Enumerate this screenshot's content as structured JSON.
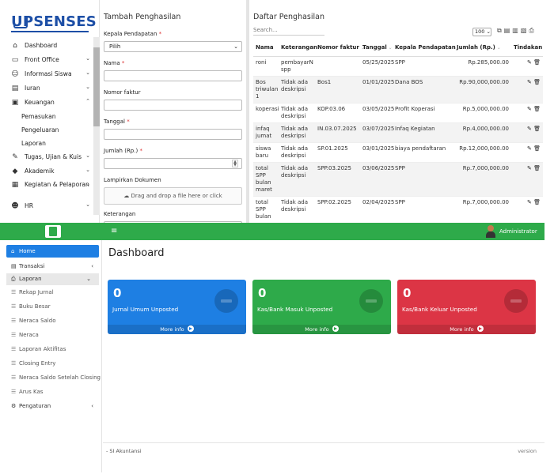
{
  "top_app": {
    "logo": {
      "text": "UPSENSES"
    },
    "sidebar": {
      "items": [
        {
          "label": "Dashboard",
          "icon": "home-icon",
          "glyph": "⌂",
          "chevron": false
        },
        {
          "label": "Front Office",
          "icon": "monitor-icon",
          "glyph": "▭",
          "chevron": true
        },
        {
          "label": "Informasi Siswa",
          "icon": "users-icon",
          "glyph": "☺",
          "chevron": true
        },
        {
          "label": "Iuran",
          "icon": "money-icon",
          "glyph": "▤",
          "chevron": true
        },
        {
          "label": "Keuangan",
          "icon": "finance-icon",
          "glyph": "▣",
          "chevron_up": true
        }
      ],
      "subitems": [
        "Pemasukan",
        "Pengeluaran",
        "Laporan"
      ],
      "items_after": [
        {
          "label": "Tugas, Ujian & Kuis",
          "icon": "exam-icon",
          "glyph": "✎",
          "chevron": true
        },
        {
          "label": "Akademik",
          "icon": "graduation-cap-icon",
          "glyph": "◆",
          "chevron": true
        },
        {
          "label": "Kegiatan & Pelaporan",
          "icon": "report-icon",
          "glyph": "▦",
          "chevron": true,
          "two_line": true
        },
        {
          "label": "HR",
          "icon": "people-icon",
          "glyph": "☻",
          "chevron": true
        }
      ]
    },
    "form": {
      "title": "Tambah Penghasilan",
      "kepala_label": "Kepala Pendapatan",
      "kepala_value": "Pilih",
      "nama_label": "Nama",
      "nomor_label": "Nomor faktur",
      "tanggal_label": "Tanggal",
      "jumlah_label": "Jumlah (Rp.)",
      "lampiran_label": "Lampirkan Dokumen",
      "dropzone_text": "Drag and drop a file here or click",
      "keterangan_label": "Keterangan",
      "required_mark": "*"
    },
    "table": {
      "title": "Daftar Penghasilan",
      "search_placeholder": "Search...",
      "page_size": "100",
      "headers": [
        "Nama",
        "Keterangan",
        "Nomor faktur",
        "Tanggal",
        "Kepala Pendapatan",
        "Jumlah (Rp.)",
        "Tindakan"
      ],
      "rows": [
        {
          "nama": "roni",
          "keterangan": "pembayarN spp",
          "nomor": "",
          "tanggal": "05/25/2025",
          "kepala": "SPP",
          "jumlah": "Rp.285,000.00"
        },
        {
          "nama": "Bos triwulan 1",
          "keterangan": "Tidak ada deskripsi",
          "nomor": "Bos1",
          "tanggal": "01/01/2025",
          "kepala": "Dana BOS",
          "jumlah": "Rp.90,000,000.00"
        },
        {
          "nama": "koperasi",
          "keterangan": "Tidak ada deskripsi",
          "nomor": "KOP.03.06",
          "tanggal": "03/05/2025",
          "kepala": "Profit Koperasi",
          "jumlah": "Rp.5,000,000.00"
        },
        {
          "nama": "infaq jumat",
          "keterangan": "Tidak ada deskripsi",
          "nomor": "IN.03.07.2025",
          "tanggal": "03/07/2025",
          "kepala": "Infaq Kegiatan",
          "jumlah": "Rp.4,000,000.00"
        },
        {
          "nama": "siswa baru",
          "keterangan": "Tidak ada deskripsi",
          "nomor": "SP.01.2025",
          "tanggal": "03/01/2025",
          "kepala": "biaya pendaftaran",
          "jumlah": "Rp.12,000,000.00"
        },
        {
          "nama": "total SPP bulan maret",
          "keterangan": "Tidak ada deskripsi",
          "nomor": "SPP.03.2025",
          "tanggal": "03/06/2025",
          "kepala": "SPP",
          "jumlah": "Rp.7,000,000.00"
        },
        {
          "nama": "total SPP bulan",
          "keterangan": "Tidak ada deskripsi",
          "nomor": "SPP.02.2025",
          "tanggal": "02/04/2025",
          "kepala": "SPP",
          "jumlah": "Rp.7,000,000.00"
        }
      ]
    }
  },
  "bottom_app": {
    "header": {
      "user": "Administrator"
    },
    "sidebar": {
      "home": "Home",
      "transaksi": "Transaksi",
      "laporan": "Laporan",
      "laporan_items": [
        "Rekap Jurnal",
        "Buku Besar",
        "Neraca Saldo",
        "Neraca",
        "Laporan Aktifitas",
        "Closing Entry",
        "Neraca Saldo Setelah Closing",
        "Arus Kas"
      ],
      "pengaturan": "Pengaturan"
    },
    "content": {
      "title": "Dashboard",
      "cards": [
        {
          "value": "0",
          "label": "Jurnal Umum Unposted",
          "more": "More info",
          "color": "#1e7fe3"
        },
        {
          "value": "0",
          "label": "Kas/Bank Masuk Unposted",
          "more": "More info",
          "color": "#2eaa4a"
        },
        {
          "value": "0",
          "label": "Kas/Bank Keluar Unposted",
          "more": "More info",
          "color": "#dc3545"
        }
      ]
    },
    "footer": {
      "left": "- SI Akuntansi",
      "right": "version"
    }
  }
}
